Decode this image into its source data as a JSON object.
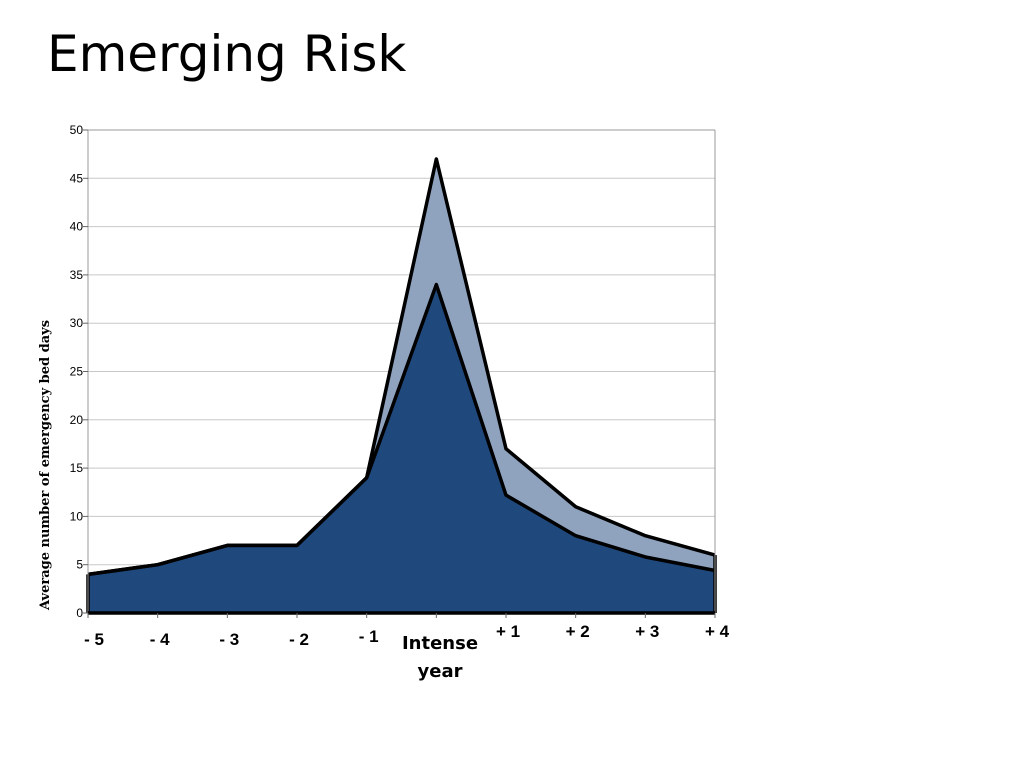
{
  "slide": {
    "title": "Emerging Risk"
  },
  "chart_data": {
    "type": "area",
    "title": "",
    "ylabel": "Average number of emergency bed days",
    "xlabel": "",
    "x_center_label_line1": "Intense",
    "x_center_label_line2": "year",
    "ylim": [
      0,
      50
    ],
    "y_ticks": [
      0,
      5,
      10,
      15,
      20,
      25,
      30,
      35,
      40,
      45,
      50
    ],
    "y_tick_labels": [
      "0",
      "5",
      "10",
      "15",
      "20",
      "25",
      "30",
      "35",
      "40",
      "45",
      "50"
    ],
    "x_index": [
      -5,
      -4,
      -3,
      -2,
      -1,
      0,
      1,
      2,
      3,
      4
    ],
    "x_tick_labels": [
      "- 5",
      "- 4",
      "- 3",
      "- 2",
      "- 1",
      "",
      "+ 1",
      "+ 2",
      "+ 3",
      "+ 4"
    ],
    "grid": true,
    "series": [
      {
        "values": [
          4,
          5,
          7,
          7,
          14,
          47,
          17,
          11,
          8,
          6
        ],
        "color": "#8fa3bf"
      },
      {
        "values": [
          4,
          5,
          7,
          7,
          14,
          34,
          12.2,
          8,
          5.8,
          4.4
        ],
        "color": "#1f497d"
      }
    ]
  }
}
